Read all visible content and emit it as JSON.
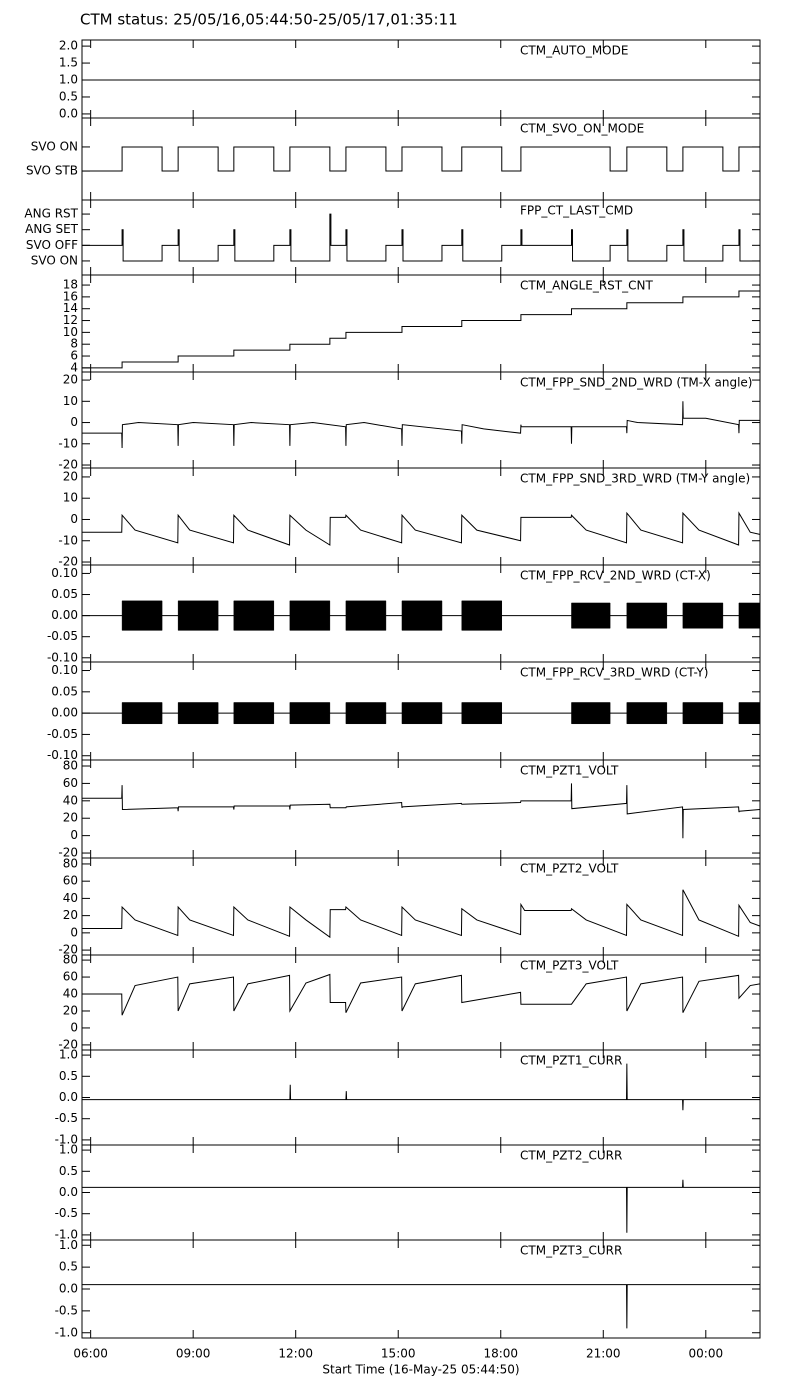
{
  "title": "CTM status: 25/05/16,05:44:50-25/05/17,01:35:11",
  "chart_data": [
    {
      "type": "line",
      "label": "CTM_AUTO_MODE",
      "xlim": [
        5.747,
        25.586
      ],
      "ylim": [
        -0.12,
        2.18
      ],
      "yticks": [
        {
          "value": 0,
          "label": "0.0"
        },
        {
          "value": 0.5,
          "label": "0.5"
        },
        {
          "value": 1,
          "label": "1.0"
        },
        {
          "value": 1.5,
          "label": "1.5"
        },
        {
          "value": 2,
          "label": "2.0"
        }
      ],
      "x": [
        5.75,
        25.58
      ],
      "values": [
        1,
        1
      ]
    },
    {
      "type": "line",
      "label": "CTM_SVO_ON_MODE",
      "step": true,
      "xlim": [
        5.747,
        25.586
      ],
      "ylim": [
        -1.2,
        2.2
      ],
      "yticks": [
        {
          "value": 0,
          "label": "SVO STB"
        },
        {
          "value": 1,
          "label": "SVO ON"
        }
      ],
      "x": [
        5.75,
        6.92,
        8.09,
        8.56,
        9.73,
        10.19,
        11.36,
        11.83,
        13.0,
        13.47,
        14.64,
        15.11,
        16.28,
        16.86,
        18.03,
        18.59,
        21.2,
        21.69,
        22.86,
        23.33,
        24.5,
        24.97,
        25.58
      ],
      "values": [
        0,
        1,
        0,
        1,
        0,
        1,
        0,
        1,
        0,
        1,
        0,
        1,
        0,
        1,
        0,
        1,
        0,
        1,
        0,
        1,
        0,
        1,
        1
      ]
    },
    {
      "type": "line",
      "label": "FPP_CT_LAST_CMD",
      "step": true,
      "xlim": [
        5.747,
        25.586
      ],
      "ylim": [
        -0.9,
        3.9
      ],
      "yticks": [
        {
          "value": 0,
          "label": "SVO ON"
        },
        {
          "value": 1,
          "label": "SVO OFF"
        },
        {
          "value": 2,
          "label": "ANG SET"
        },
        {
          "value": 3,
          "label": "ANG RST"
        }
      ],
      "x": [
        5.75,
        6.92,
        6.95,
        8.09,
        8.56,
        8.59,
        9.73,
        10.19,
        10.22,
        11.36,
        11.83,
        11.86,
        13.0,
        13.03,
        13.47,
        13.5,
        14.64,
        15.11,
        15.14,
        16.28,
        16.86,
        16.89,
        18.03,
        18.59,
        18.62,
        20.07,
        20.1,
        21.2,
        21.69,
        21.72,
        22.86,
        23.33,
        23.36,
        24.5,
        24.97,
        25.0,
        25.58
      ],
      "values": [
        1,
        2,
        0,
        1,
        2,
        0,
        1,
        2,
        0,
        1,
        2,
        0,
        3,
        1,
        2,
        0,
        1,
        2,
        0,
        1,
        2,
        0,
        1,
        2,
        1,
        2,
        0,
        1,
        2,
        0,
        1,
        2,
        0,
        1,
        2,
        0,
        0
      ]
    },
    {
      "type": "line",
      "label": "CTM_ANGLE_RST_CNT",
      "step": true,
      "xlim": [
        5.747,
        25.586
      ],
      "ylim": [
        3.3,
        19.7
      ],
      "yticks": [
        4,
        6,
        8,
        10,
        12,
        14,
        16,
        18
      ],
      "x": [
        5.75,
        6.92,
        8.56,
        10.19,
        11.83,
        13.0,
        13.47,
        15.11,
        16.86,
        18.59,
        20.07,
        21.69,
        23.33,
        24.97,
        25.58
      ],
      "values": [
        4,
        5,
        6,
        7,
        8,
        9,
        10,
        11,
        12,
        13,
        14,
        15,
        16,
        17,
        17
      ]
    },
    {
      "type": "line",
      "label": "CTM_FPP_SND_2ND_WRD (TM-X angle)",
      "xlim": [
        5.747,
        25.586
      ],
      "ylim": [
        -21.4,
        23.8
      ],
      "yticks": [
        -20,
        -10,
        0,
        10,
        20
      ],
      "x": [
        5.75,
        6.91,
        6.92,
        6.93,
        7.4,
        8.55,
        8.56,
        8.57,
        9.0,
        10.18,
        10.19,
        10.2,
        10.7,
        11.82,
        11.83,
        11.84,
        12.5,
        13.46,
        13.47,
        13.48,
        14.0,
        15.1,
        15.11,
        15.12,
        16.85,
        16.86,
        16.87,
        17.5,
        18.58,
        18.59,
        18.6,
        20.06,
        20.07,
        20.08,
        21.68,
        21.69,
        21.7,
        22.0,
        23.32,
        23.33,
        23.34,
        24.0,
        24.96,
        24.97,
        24.98,
        25.58
      ],
      "values": [
        -5,
        -5,
        -12,
        -1,
        0,
        -1,
        -11,
        -1,
        0,
        -1,
        -11,
        -1,
        0,
        -1,
        -11,
        -1,
        0,
        -2,
        -11,
        -1,
        0,
        -3,
        -11,
        -1,
        -4,
        -10,
        -1,
        -3,
        -5,
        -1,
        -2,
        -2,
        -10,
        -2,
        -2,
        -5,
        1,
        0,
        -1,
        10,
        2,
        2,
        -1,
        -5,
        1,
        1
      ]
    },
    {
      "type": "line",
      "label": "CTM_FPP_SND_3RD_WRD (TM-Y angle)",
      "xlim": [
        5.747,
        25.586
      ],
      "ylim": [
        -21.4,
        24.2
      ],
      "yticks": [
        -20,
        -10,
        0,
        10,
        20
      ],
      "x": [
        5.75,
        6.91,
        6.92,
        7.3,
        8.55,
        8.56,
        8.9,
        10.18,
        10.19,
        10.6,
        11.82,
        11.83,
        12.3,
        13.0,
        13.01,
        13.46,
        13.47,
        13.9,
        15.1,
        15.11,
        15.5,
        16.85,
        16.86,
        17.3,
        18.58,
        18.59,
        20.06,
        20.07,
        20.5,
        21.68,
        21.69,
        22.1,
        23.32,
        23.33,
        23.8,
        24.96,
        24.97,
        25.3,
        25.58
      ],
      "values": [
        -6,
        -6,
        2,
        -5,
        -11,
        2,
        -5,
        -11,
        2,
        -5,
        -12,
        2,
        -5,
        -12,
        1,
        1,
        2,
        -5,
        -11,
        2,
        -5,
        -11,
        2,
        -5,
        -10,
        1,
        1,
        2,
        -5,
        -11,
        3,
        -5,
        -11,
        3,
        -5,
        -12,
        3,
        -6,
        -7
      ]
    },
    {
      "type": "line",
      "label": "CTM_FPP_RCV_2ND_WRD (CT-X)",
      "xlim": [
        5.747,
        25.586
      ],
      "ylim": [
        -0.11,
        0.12
      ],
      "yticks": [
        {
          "value": -0.1,
          "label": "-0.10"
        },
        {
          "value": -0.05,
          "label": "-0.05"
        },
        {
          "value": 0,
          "label": "0.00"
        },
        {
          "value": 0.05,
          "label": "0.05"
        },
        {
          "value": 0.1,
          "label": "0.10"
        }
      ],
      "x": [
        5.75,
        25.58
      ],
      "values": [
        0,
        0
      ],
      "band_x": [
        6.92,
        8.09,
        8.3,
        8.56,
        9.73,
        10.0,
        10.19,
        11.36,
        11.6,
        11.83,
        13.0,
        13.2,
        13.47,
        14.64,
        14.9,
        15.11,
        16.28,
        16.5,
        16.86,
        18.03,
        19.0,
        20.07,
        21.2,
        21.4,
        21.69,
        22.86,
        23.1,
        23.33,
        24.5,
        24.7,
        24.97,
        25.58
      ],
      "band_max": [
        0.035,
        0.035,
        null,
        0.035,
        0.035,
        null,
        0.035,
        0.035,
        null,
        0.035,
        0.035,
        null,
        0.035,
        0.035,
        null,
        0.035,
        0.035,
        null,
        0.035,
        0.035,
        null,
        0.03,
        0.03,
        null,
        0.03,
        0.03,
        null,
        0.03,
        0.03,
        null,
        0.03,
        0.03
      ],
      "band_min": [
        -0.035,
        -0.035,
        null,
        -0.035,
        -0.035,
        null,
        -0.035,
        -0.035,
        null,
        -0.035,
        -0.035,
        null,
        -0.035,
        -0.035,
        null,
        -0.035,
        -0.035,
        null,
        -0.035,
        -0.035,
        null,
        -0.03,
        -0.03,
        null,
        -0.03,
        -0.03,
        null,
        -0.03,
        -0.03,
        null,
        -0.03,
        -0.03
      ]
    },
    {
      "type": "line",
      "label": "CTM_FPP_RCV_3RD_WRD (CT-Y)",
      "xlim": [
        5.747,
        25.586
      ],
      "ylim": [
        -0.11,
        0.12
      ],
      "yticks": [
        {
          "value": -0.1,
          "label": "-0.10"
        },
        {
          "value": -0.05,
          "label": "-0.05"
        },
        {
          "value": 0,
          "label": "0.00"
        },
        {
          "value": 0.05,
          "label": "0.05"
        },
        {
          "value": 0.1,
          "label": "0.10"
        }
      ],
      "x": [
        5.75,
        25.58
      ],
      "values": [
        0,
        0
      ],
      "band_x": [
        6.92,
        8.09,
        8.3,
        8.56,
        9.73,
        10.0,
        10.19,
        11.36,
        11.6,
        11.83,
        13.0,
        13.2,
        13.47,
        14.64,
        14.9,
        15.11,
        16.28,
        16.5,
        16.86,
        18.03,
        19.0,
        20.07,
        21.2,
        21.4,
        21.69,
        22.86,
        23.1,
        23.33,
        24.5,
        24.7,
        24.97,
        25.58
      ],
      "band_max": [
        0.025,
        0.025,
        null,
        0.025,
        0.025,
        null,
        0.025,
        0.025,
        null,
        0.025,
        0.025,
        null,
        0.025,
        0.025,
        null,
        0.025,
        0.025,
        null,
        0.025,
        0.025,
        null,
        0.025,
        0.025,
        null,
        0.025,
        0.025,
        null,
        0.025,
        0.025,
        null,
        0.025,
        0.025
      ],
      "band_min": [
        -0.025,
        -0.025,
        null,
        -0.025,
        -0.025,
        null,
        -0.025,
        -0.025,
        null,
        -0.025,
        -0.025,
        null,
        -0.025,
        -0.025,
        null,
        -0.025,
        -0.025,
        null,
        -0.025,
        -0.025,
        null,
        -0.025,
        -0.025,
        null,
        -0.025,
        -0.025,
        null,
        -0.025,
        -0.025,
        null,
        -0.025,
        -0.025
      ]
    },
    {
      "type": "line",
      "label": "CTM_PZT1_VOLT",
      "xlim": [
        5.747,
        25.586
      ],
      "ylim": [
        -25.7,
        86.9
      ],
      "yticks": [
        -20,
        0,
        20,
        40,
        60,
        80
      ],
      "x": [
        5.75,
        6.91,
        6.92,
        6.93,
        8.55,
        8.56,
        8.57,
        10.18,
        10.19,
        10.2,
        11.82,
        11.83,
        11.84,
        13.0,
        13.01,
        13.47,
        13.48,
        15.1,
        15.11,
        15.12,
        16.85,
        16.86,
        18.58,
        18.59,
        20.06,
        20.07,
        20.08,
        21.68,
        21.69,
        21.7,
        23.32,
        23.33,
        23.34,
        24.96,
        24.97,
        24.98,
        25.58
      ],
      "values": [
        43,
        43,
        58,
        30,
        32,
        28,
        33,
        33,
        30,
        34,
        34,
        30,
        35,
        36,
        32,
        32,
        33,
        38,
        32,
        33,
        37,
        36,
        38,
        40,
        40,
        60,
        31,
        37,
        58,
        25,
        33,
        -3,
        30,
        33,
        27,
        28,
        30
      ]
    },
    {
      "type": "line",
      "label": "CTM_PZT2_VOLT",
      "xlim": [
        5.747,
        25.586
      ],
      "ylim": [
        -25.7,
        86.9
      ],
      "yticks": [
        -20,
        0,
        20,
        40,
        60,
        80
      ],
      "x": [
        5.75,
        6.91,
        6.92,
        7.3,
        8.55,
        8.56,
        8.9,
        10.18,
        10.19,
        10.6,
        11.82,
        11.83,
        12.3,
        13.0,
        13.01,
        13.46,
        13.47,
        13.9,
        15.1,
        15.11,
        15.5,
        16.85,
        16.86,
        17.3,
        18.58,
        18.59,
        18.7,
        20.06,
        20.07,
        20.5,
        21.68,
        21.69,
        22.1,
        23.32,
        23.33,
        23.8,
        24.96,
        24.97,
        25.3,
        25.58
      ],
      "values": [
        5,
        5,
        30,
        15,
        -3,
        30,
        15,
        -3,
        30,
        15,
        -4,
        30,
        15,
        -5,
        27,
        27,
        30,
        15,
        -3,
        30,
        15,
        -3,
        28,
        15,
        -2,
        33,
        26,
        26,
        28,
        15,
        -3,
        33,
        15,
        -3,
        50,
        15,
        -4,
        32,
        12,
        8
      ]
    },
    {
      "type": "line",
      "label": "CTM_PZT3_VOLT",
      "xlim": [
        5.747,
        25.586
      ],
      "ylim": [
        -26,
        86
      ],
      "yticks": [
        -20,
        0,
        20,
        40,
        60,
        80
      ],
      "x": [
        5.75,
        6.91,
        6.92,
        7.3,
        8.55,
        8.56,
        8.9,
        10.18,
        10.19,
        10.6,
        11.82,
        11.83,
        12.3,
        13.0,
        13.01,
        13.46,
        13.47,
        13.9,
        15.1,
        15.11,
        15.5,
        16.85,
        16.86,
        18.58,
        18.59,
        20.06,
        20.07,
        20.5,
        21.68,
        21.69,
        22.1,
        23.32,
        23.33,
        23.8,
        24.96,
        24.97,
        25.3,
        25.58
      ],
      "values": [
        40,
        40,
        15,
        50,
        60,
        20,
        52,
        60,
        20,
        52,
        62,
        20,
        53,
        63,
        30,
        30,
        18,
        53,
        60,
        20,
        52,
        62,
        30,
        42,
        28,
        28,
        28,
        52,
        60,
        20,
        52,
        60,
        18,
        55,
        62,
        35,
        50,
        52
      ]
    },
    {
      "type": "line",
      "label": "CTM_PZT1_CURR",
      "xlim": [
        5.747,
        25.586
      ],
      "ylim": [
        -1.12,
        1.12
      ],
      "yticks": [
        {
          "value": -1,
          "label": "-1.0"
        },
        {
          "value": -0.5,
          "label": "-0.5"
        },
        {
          "value": 0,
          "label": "0.0"
        },
        {
          "value": 0.5,
          "label": "0.5"
        },
        {
          "value": 1,
          "label": "1.0"
        }
      ],
      "x": [
        5.75,
        11.83,
        11.84,
        11.85,
        13.47,
        13.48,
        13.49,
        21.68,
        21.69,
        21.7,
        23.32,
        23.33,
        23.34,
        25.58
      ],
      "values": [
        -0.05,
        -0.05,
        0.3,
        -0.05,
        -0.05,
        0.15,
        -0.05,
        -0.05,
        0.8,
        -0.05,
        -0.05,
        -0.3,
        -0.05,
        -0.05
      ]
    },
    {
      "type": "line",
      "label": "CTM_PZT2_CURR",
      "xlim": [
        5.747,
        25.586
      ],
      "ylim": [
        -1.12,
        1.12
      ],
      "yticks": [
        {
          "value": -1,
          "label": "-1.0"
        },
        {
          "value": -0.5,
          "label": "-0.5"
        },
        {
          "value": 0,
          "label": "0.0"
        },
        {
          "value": 0.5,
          "label": "0.5"
        },
        {
          "value": 1,
          "label": "1.0"
        }
      ],
      "x": [
        5.75,
        21.68,
        21.69,
        21.7,
        23.32,
        23.33,
        23.34,
        25.58
      ],
      "values": [
        0.12,
        0.12,
        -0.95,
        0.12,
        0.12,
        0.3,
        0.12,
        0.12
      ]
    },
    {
      "type": "line",
      "label": "CTM_PZT3_CURR",
      "xlim": [
        5.747,
        25.586
      ],
      "ylim": [
        -1.12,
        1.12
      ],
      "yticks": [
        {
          "value": -1,
          "label": "-1.0"
        },
        {
          "value": -0.5,
          "label": "-0.5"
        },
        {
          "value": 0,
          "label": "0.0"
        },
        {
          "value": 0.5,
          "label": "0.5"
        },
        {
          "value": 1,
          "label": "1.0"
        }
      ],
      "x": [
        5.75,
        21.68,
        21.69,
        21.7,
        25.58
      ],
      "values": [
        0.1,
        0.1,
        -0.9,
        0.1,
        0.1
      ],
      "xticks": [
        {
          "value": 6,
          "label": "06:00"
        },
        {
          "value": 9,
          "label": "09:00"
        },
        {
          "value": 12,
          "label": "12:00"
        },
        {
          "value": 15,
          "label": "15:00"
        },
        {
          "value": 18,
          "label": "18:00"
        },
        {
          "value": 21,
          "label": "21:00"
        },
        {
          "value": 24,
          "label": "00:00"
        }
      ],
      "xlabel": "Start Time (16-May-25 05:44:50)"
    }
  ]
}
